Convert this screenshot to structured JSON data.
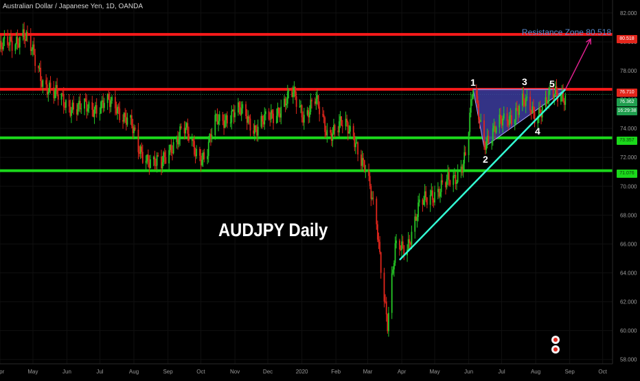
{
  "header": {
    "symbol_line": "Australian Dollar / Japanese Yen, 1D, OANDA"
  },
  "annotations": {
    "title": "AUDJPY Daily",
    "resistance_label": "Resistance Zone 80.518",
    "waves": [
      "1",
      "2",
      "3",
      "4",
      "5"
    ]
  },
  "price_tags": {
    "red_top": "80.518",
    "red_mid": "76.710",
    "current": "76.362",
    "countdown": "16:29:38",
    "green_upper": "73.357",
    "green_lower": "71.076"
  },
  "colors": {
    "background": "#000000",
    "bull": "#26c926",
    "bear": "#e2261c",
    "resistance": "#ff1a1a",
    "support": "#1bd81b",
    "trendline": "#33ffd6",
    "triangle_fill": "#3c3c9e",
    "arrow": "#e0208f",
    "price_axis_text": "#9a9a9a"
  },
  "chart_data": {
    "type": "candlestick",
    "title": "AUDJPY Daily",
    "ylim": [
      57.7,
      82.9
    ],
    "y_ticks": [
      58.0,
      60.0,
      62.0,
      64.0,
      66.0,
      68.0,
      70.0,
      72.0,
      74.0,
      76.0,
      78.0,
      80.0,
      82.0
    ],
    "x_ticks": [
      "Apr",
      "May",
      "Jun",
      "Jul",
      "Aug",
      "Sep",
      "Oct",
      "Nov",
      "Dec",
      "2020",
      "Feb",
      "Mar",
      "Apr",
      "May",
      "Jun",
      "Jul",
      "Aug",
      "Sep",
      "Oct"
    ],
    "x_range": [
      "2019-04-01",
      "2020-10-10"
    ],
    "horizontal_levels": [
      {
        "price": 80.518,
        "color": "red",
        "role": "resistance"
      },
      {
        "price": 76.71,
        "color": "red",
        "role": "resistance"
      },
      {
        "price": 73.357,
        "color": "green",
        "role": "support"
      },
      {
        "price": 71.076,
        "color": "green",
        "role": "support"
      }
    ],
    "current_price": 76.362,
    "trendline": {
      "from": [
        "2020-03-30",
        64.9
      ],
      "to": [
        "2020-08-28",
        76.71
      ]
    },
    "triangle": [
      [
        "2020-06-05",
        76.71
      ],
      [
        "2020-08-28",
        76.71
      ],
      [
        "2020-06-15",
        72.7
      ]
    ],
    "projection_arrow": {
      "from": [
        "2020-08-28",
        76.71
      ],
      "to": [
        "2020-09-20",
        80.2
      ]
    },
    "close_path": [
      [
        "2019-04-01",
        79.5
      ],
      [
        "2019-04-12",
        80.0
      ],
      [
        "2019-04-22",
        80.6
      ],
      [
        "2019-05-01",
        79.1
      ],
      [
        "2019-05-10",
        77.4
      ],
      [
        "2019-05-20",
        76.3
      ],
      [
        "2019-06-01",
        75.8
      ],
      [
        "2019-06-12",
        75.3
      ],
      [
        "2019-06-24",
        75.5
      ],
      [
        "2019-07-05",
        75.7
      ],
      [
        "2019-07-16",
        75.5
      ],
      [
        "2019-07-28",
        74.6
      ],
      [
        "2019-08-05",
        72.4
      ],
      [
        "2019-08-15",
        72.0
      ],
      [
        "2019-08-26",
        71.3
      ],
      [
        "2019-09-05",
        73.0
      ],
      [
        "2019-09-15",
        74.0
      ],
      [
        "2019-09-25",
        72.6
      ],
      [
        "2019-10-05",
        72.0
      ],
      [
        "2019-10-15",
        74.5
      ],
      [
        "2019-10-28",
        75.0
      ],
      [
        "2019-11-10",
        75.1
      ],
      [
        "2019-11-20",
        74.0
      ],
      [
        "2019-12-01",
        74.6
      ],
      [
        "2019-12-12",
        75.5
      ],
      [
        "2019-12-24",
        76.3
      ],
      [
        "2020-01-03",
        75.0
      ],
      [
        "2020-01-13",
        75.9
      ],
      [
        "2020-01-24",
        73.8
      ],
      [
        "2020-02-05",
        74.2
      ],
      [
        "2020-02-17",
        73.7
      ],
      [
        "2020-02-28",
        71.0
      ],
      [
        "2020-03-09",
        67.5
      ],
      [
        "2020-03-19",
        60.5
      ],
      [
        "2020-03-26",
        65.5
      ],
      [
        "2020-04-06",
        66.0
      ],
      [
        "2020-04-17",
        68.5
      ],
      [
        "2020-04-28",
        69.5
      ],
      [
        "2020-05-08",
        70.0
      ],
      [
        "2020-05-19",
        70.4
      ],
      [
        "2020-05-29",
        72.3
      ],
      [
        "2020-06-05",
        76.6
      ],
      [
        "2020-06-15",
        73.2
      ],
      [
        "2020-06-26",
        74.0
      ],
      [
        "2020-07-08",
        74.8
      ],
      [
        "2020-07-20",
        75.8
      ],
      [
        "2020-07-31",
        75.0
      ],
      [
        "2020-08-12",
        76.0
      ],
      [
        "2020-08-24",
        76.4
      ],
      [
        "2020-08-28",
        76.36
      ]
    ]
  }
}
